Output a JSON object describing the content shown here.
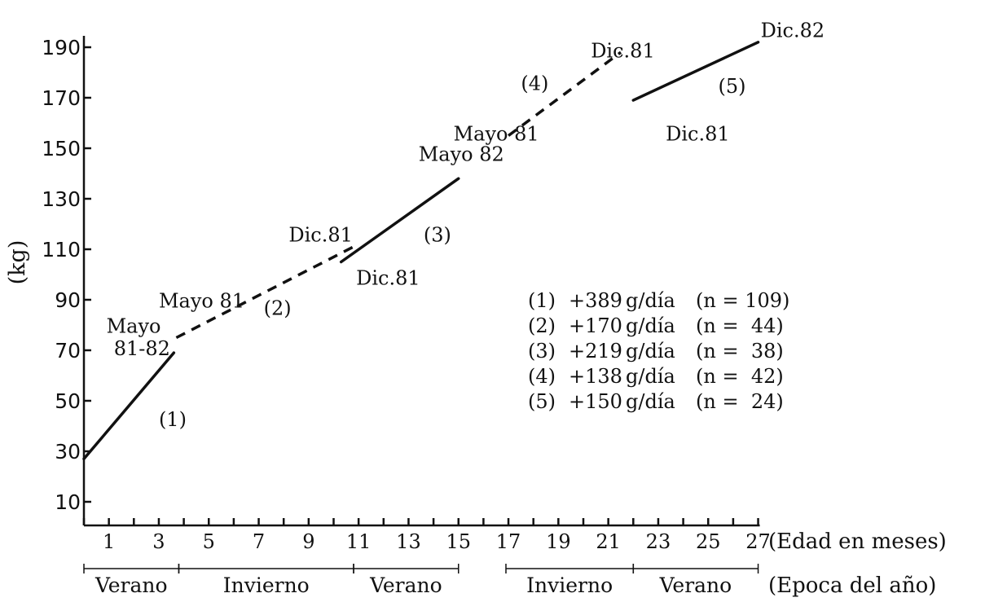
{
  "chart_data": {
    "type": "line",
    "title": "",
    "ylabel": "(kg)",
    "xlabel": "(Edad en meses)",
    "season_axis_label": "(Epoca del año)",
    "x_ticks": [
      1,
      3,
      5,
      7,
      9,
      11,
      13,
      15,
      17,
      19,
      21,
      23,
      25,
      27
    ],
    "y_ticks": [
      10,
      30,
      50,
      70,
      90,
      110,
      130,
      150,
      170,
      190
    ],
    "xlim": [
      0,
      27
    ],
    "ylim": [
      0,
      192
    ],
    "grid": false,
    "series": [
      {
        "id": "1",
        "style": "solid",
        "x": [
          0,
          3.6
        ],
        "y": [
          27,
          69
        ]
      },
      {
        "id": "2",
        "style": "dashed",
        "x": [
          3.7,
          10.8
        ],
        "y": [
          75,
          111
        ]
      },
      {
        "id": "3",
        "style": "solid",
        "x": [
          10.3,
          15
        ],
        "y": [
          105,
          138
        ]
      },
      {
        "id": "4",
        "style": "dashed",
        "x": [
          17,
          21.5
        ],
        "y": [
          155,
          188
        ]
      },
      {
        "id": "5",
        "style": "solid",
        "x": [
          22,
          27
        ],
        "y": [
          169,
          192
        ]
      }
    ],
    "annotations": [
      {
        "text": "Mayo",
        "x": 0.9,
        "y": 77
      },
      {
        "text": "81-82",
        "x": 1.2,
        "y": 68
      },
      {
        "text": "(1)",
        "x": 3.0,
        "y": 40
      },
      {
        "text": "Mayo 81",
        "x": 3.0,
        "y": 87
      },
      {
        "text": "(2)",
        "x": 7.2,
        "y": 84
      },
      {
        "text": "Dic.81",
        "x": 8.2,
        "y": 113
      },
      {
        "text": "Dic.81",
        "x": 10.9,
        "y": 96
      },
      {
        "text": "(3)",
        "x": 13.6,
        "y": 113
      },
      {
        "text": "Mayo 82",
        "x": 13.4,
        "y": 145
      },
      {
        "text": "Mayo 81",
        "x": 14.8,
        "y": 153
      },
      {
        "text": "(4)",
        "x": 17.5,
        "y": 173
      },
      {
        "text": "Dic.81",
        "x": 20.3,
        "y": 186
      },
      {
        "text": "Dic.81",
        "x": 23.3,
        "y": 153
      },
      {
        "text": "(5)",
        "x": 25.4,
        "y": 172
      },
      {
        "text": "Dic.82",
        "x": 27.1,
        "y": 194
      }
    ],
    "legend": [
      {
        "num": "(1)",
        "rate": "+389",
        "unit": "g/día",
        "n_label": "(n = 109)"
      },
      {
        "num": "(2)",
        "rate": "+170",
        "unit": "g/día",
        "n_label": "(n =  44)"
      },
      {
        "num": "(3)",
        "rate": "+219",
        "unit": "g/día",
        "n_label": "(n =  38)"
      },
      {
        "num": "(4)",
        "rate": "+138",
        "unit": "g/día",
        "n_label": "(n =  42)"
      },
      {
        "num": "(5)",
        "rate": "+150",
        "unit": "g/día",
        "n_label": "(n =  24)"
      }
    ],
    "legend_position": "center-right",
    "seasons": [
      {
        "name": "Verano",
        "start": 0,
        "end": 3.8
      },
      {
        "name": "Invierno",
        "start": 3.8,
        "end": 10.8
      },
      {
        "name": "Verano",
        "start": 10.8,
        "end": 15
      },
      {
        "name": "Invierno",
        "start": 16.9,
        "end": 22
      },
      {
        "name": "Verano",
        "start": 22,
        "end": 27
      }
    ]
  }
}
